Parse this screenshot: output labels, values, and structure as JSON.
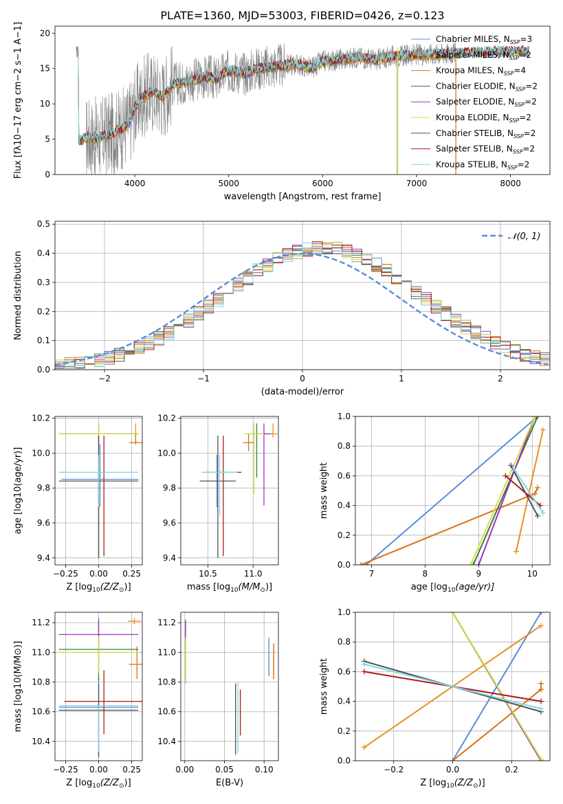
{
  "figure": {
    "title": "PLATE=1360, MJD=53003, FIBERID=0426, z=0.123"
  },
  "legend_series": [
    {
      "name": "Chabrier MILES",
      "nssp": "3",
      "color": "#5a8ad8"
    },
    {
      "name": "Salpeter MILES",
      "nssp": "2",
      "color": "#e89020"
    },
    {
      "name": "Kroupa MILES",
      "nssp": "4",
      "color": "#d87010"
    },
    {
      "name": "Chabrier ELODIE",
      "nssp": "2",
      "color": "#3a7a3a"
    },
    {
      "name": "Salpeter ELODIE",
      "nssp": "2",
      "color": "#a030c0"
    },
    {
      "name": "Kroupa ELODIE",
      "nssp": "2",
      "color": "#d0e040"
    },
    {
      "name": "Chabrier STELIB",
      "nssp": "2",
      "color": "#505050"
    },
    {
      "name": "Salpeter STELIB",
      "nssp": "2",
      "color": "#b01818"
    },
    {
      "name": "Kroupa STELIB",
      "nssp": "2",
      "color": "#80d8e0"
    }
  ],
  "chart_data": [
    {
      "id": "spectrum",
      "type": "line",
      "xlabel": "wavelength [Angstrom, rest frame]",
      "ylabel_parts": [
        "Flux [f",
        "λ",
        "10",
        "−17",
        " erg cm",
        "−2",
        " s",
        "−1",
        " A",
        "−1",
        "]"
      ],
      "xlim": [
        3150,
        8420
      ],
      "ylim": [
        0,
        21
      ],
      "xticks": [
        4000,
        5000,
        6000,
        7000,
        8000
      ],
      "yticks": [
        0,
        5,
        10,
        15,
        20
      ],
      "continuum": [
        [
          3400,
          4.7
        ],
        [
          3500,
          5.3
        ],
        [
          3600,
          5.1
        ],
        [
          3700,
          5.6
        ],
        [
          3800,
          6.0
        ],
        [
          3900,
          6.8
        ],
        [
          3950,
          7.6
        ],
        [
          4000,
          9.5
        ],
        [
          4100,
          11.2
        ],
        [
          4200,
          11.8
        ],
        [
          4300,
          11.0
        ],
        [
          4400,
          12.8
        ],
        [
          4500,
          13.0
        ],
        [
          4600,
          13.3
        ],
        [
          4700,
          13.6
        ],
        [
          4800,
          13.9
        ],
        [
          4861,
          13.4
        ],
        [
          4950,
          14.4
        ],
        [
          5050,
          14.7
        ],
        [
          5175,
          14.3
        ],
        [
          5300,
          15.0
        ],
        [
          5500,
          15.3
        ],
        [
          5700,
          15.6
        ],
        [
          5890,
          15.1
        ],
        [
          6000,
          16.0
        ],
        [
          6200,
          16.3
        ],
        [
          6400,
          16.6
        ],
        [
          6563,
          16.2
        ],
        [
          6700,
          16.6
        ],
        [
          6900,
          16.9
        ],
        [
          7100,
          17.0
        ],
        [
          7300,
          17.1
        ],
        [
          7500,
          17.2
        ],
        [
          7700,
          17.3
        ],
        [
          7900,
          17.4
        ],
        [
          8100,
          17.4
        ],
        [
          8200,
          17.4
        ]
      ],
      "grid": false
    },
    {
      "id": "residual-hist",
      "type": "histogram",
      "xlabel": "(data-model)/error",
      "ylabel": "Normed distribution",
      "xlim": [
        -2.5,
        2.5
      ],
      "ylim": [
        0,
        0.51
      ],
      "xticks": [
        -2,
        -1,
        0,
        1,
        2
      ],
      "yticks": [
        0.0,
        0.1,
        0.2,
        0.3,
        0.4,
        0.5
      ],
      "bin_width": 0.1,
      "reference_curve": {
        "label": "𝒩(0, 1)",
        "mean": 0,
        "sigma": 1,
        "color": "#5a8ad8"
      },
      "legend_position": "upper right",
      "grid": true
    },
    {
      "id": "age-vs-Z",
      "type": "errorbar",
      "xlabel_parts": [
        "Z [log",
        "10",
        "(Z/Z",
        "⊙",
        ")]"
      ],
      "ylabel_parts": [
        "age  [log",
        "10",
        "(age/yr)]"
      ],
      "xlim": [
        -0.33,
        0.33
      ],
      "ylim": [
        9.36,
        10.21
      ],
      "xticks": [
        -0.25,
        0.0,
        0.25
      ],
      "yticks": [
        9.4,
        9.6,
        9.8,
        10.0,
        10.2
      ],
      "points": [
        {
          "series": 0,
          "x": 0.01,
          "y": 9.85,
          "xerr": 0.29,
          "yerr": [
            0.16,
            0.2
          ]
        },
        {
          "series": 1,
          "x": 0.28,
          "y": 10.11,
          "xerr": 0.02,
          "yerr": [
            0.05,
            0.06
          ]
        },
        {
          "series": 2,
          "x": 0.28,
          "y": 10.06,
          "xerr": 0.05,
          "yerr": [
            0.01,
            0.05
          ]
        },
        {
          "series": 3,
          "x": 0.0,
          "y": 10.11,
          "xerr": 0.3,
          "yerr": [
            0.71,
            0.0
          ]
        },
        {
          "series": 4,
          "x": 0.0,
          "y": 10.11,
          "xerr": 0.27,
          "yerr": [
            0.06,
            0.06
          ]
        },
        {
          "series": 5,
          "x": 0.0,
          "y": 10.11,
          "xerr": 0.3,
          "yerr": [
            0.06,
            0.06
          ]
        },
        {
          "series": 6,
          "x": 0.0,
          "y": 9.84,
          "xerr": 0.3,
          "yerr": [
            0.44,
            0.26
          ]
        },
        {
          "series": 7,
          "x": 0.04,
          "y": 9.84,
          "xerr": 0.0,
          "yerr": [
            0.43,
            0.26
          ]
        },
        {
          "series": 8,
          "x": 0.0,
          "y": 9.89,
          "xerr": 0.3,
          "yerr": [
            0.2,
            0.1
          ]
        }
      ],
      "grid": true
    },
    {
      "id": "age-vs-mass",
      "type": "errorbar",
      "xlabel_parts": [
        "mass [log",
        "10",
        "(M/M",
        "⊙",
        ")]"
      ],
      "ylabel": "",
      "xlim": [
        10.2,
        11.28
      ],
      "ylim": [
        9.36,
        10.21
      ],
      "xticks": [
        10.5,
        11.0
      ],
      "yticks": [
        9.4,
        9.6,
        9.8,
        10.0,
        10.2
      ],
      "points": [
        {
          "series": 0,
          "x": 10.6,
          "y": 9.89,
          "xerr": 0.11,
          "yerr": [
            0.2,
            0.1
          ]
        },
        {
          "series": 1,
          "x": 11.22,
          "y": 10.11,
          "xerr": 0.05,
          "yerr": [
            0.02,
            0.06
          ]
        },
        {
          "series": 2,
          "x": 10.95,
          "y": 10.06,
          "xerr": 0.06,
          "yerr": [
            0.05,
            0.05
          ]
        },
        {
          "series": 3,
          "x": 11.04,
          "y": 10.11,
          "xerr": 0.13,
          "yerr": [
            0.25,
            0.06
          ]
        },
        {
          "series": 4,
          "x": 11.12,
          "y": 10.11,
          "xerr": 0.08,
          "yerr": [
            0.41,
            0.06
          ]
        },
        {
          "series": 5,
          "x": 11.01,
          "y": 10.11,
          "xerr": 0.11,
          "yerr": [
            0.34,
            0.06
          ]
        },
        {
          "series": 6,
          "x": 10.61,
          "y": 9.84,
          "xerr": 0.2,
          "yerr": [
            0.44,
            0.26
          ]
        },
        {
          "series": 7,
          "x": 10.67,
          "y": 9.89,
          "xerr": 0.2,
          "yerr": [
            0.48,
            0.21
          ]
        },
        {
          "series": 8,
          "x": 10.63,
          "y": 9.89,
          "xerr": 0.2,
          "yerr": [
            0.25,
            0.1
          ]
        }
      ],
      "grid": true
    },
    {
      "id": "mass-weight-vs-age",
      "type": "line",
      "xlabel_parts": [
        "age  [log",
        "10",
        "(age/yr)]"
      ],
      "ylabel": "mass weight",
      "xlim": [
        6.7,
        10.33
      ],
      "ylim": [
        0,
        1.0
      ],
      "xticks": [
        7,
        8,
        9,
        10
      ],
      "yticks": [
        0.0,
        0.2,
        0.4,
        0.6,
        0.8,
        1.0
      ],
      "series": [
        {
          "series": 0,
          "points": [
            [
              6.9,
              0.0
            ],
            [
              10.1,
              1.0
            ]
          ]
        },
        {
          "series": 1,
          "points": [
            [
              9.7,
              0.09
            ],
            [
              10.2,
              0.91
            ]
          ]
        },
        {
          "series": 2,
          "points": [
            [
              6.8,
              0.0
            ],
            [
              10.05,
              0.48
            ],
            [
              10.1,
              0.52
            ]
          ]
        },
        {
          "series": 3,
          "points": [
            [
              8.9,
              0.0
            ],
            [
              10.1,
              1.0
            ]
          ]
        },
        {
          "series": 4,
          "points": [
            [
              9.0,
              0.0
            ],
            [
              10.05,
              1.0
            ]
          ]
        },
        {
          "series": 5,
          "points": [
            [
              8.85,
              0.0
            ],
            [
              10.05,
              1.0
            ]
          ]
        },
        {
          "series": 6,
          "points": [
            [
              9.6,
              0.67
            ],
            [
              10.1,
              0.33
            ]
          ]
        },
        {
          "series": 7,
          "points": [
            [
              9.5,
              0.6
            ],
            [
              10.15,
              0.4
            ]
          ]
        },
        {
          "series": 8,
          "points": [
            [
              9.65,
              0.65
            ],
            [
              10.2,
              0.35
            ]
          ]
        }
      ],
      "grid": true
    },
    {
      "id": "mass-vs-Z",
      "type": "errorbar",
      "xlabel_parts": [
        "Z [log",
        "10",
        "(Z/Z",
        "⊙",
        ")]"
      ],
      "ylabel_parts": [
        "mass [log",
        "10",
        "(M/M",
        "⊙",
        ")]"
      ],
      "xlim": [
        -0.33,
        0.33
      ],
      "ylim": [
        10.27,
        11.27
      ],
      "xticks": [
        -0.25,
        0.0,
        0.25
      ],
      "yticks": [
        10.4,
        10.6,
        10.8,
        11.0,
        11.2
      ],
      "points": [
        {
          "series": 0,
          "x": 0.0,
          "y": 10.63,
          "xerr": 0.3,
          "yerr": [
            0.32,
            0.2
          ]
        },
        {
          "series": 1,
          "x": 0.27,
          "y": 11.21,
          "xerr": 0.05,
          "yerr": [
            0.02,
            0.02
          ]
        },
        {
          "series": 2,
          "x": 0.29,
          "y": 10.92,
          "xerr": 0.06,
          "yerr": [
            0.1,
            0.12
          ]
        },
        {
          "series": 3,
          "x": 0.0,
          "y": 11.02,
          "xerr": 0.3,
          "yerr": [
            0.21,
            0.18
          ]
        },
        {
          "series": 4,
          "x": 0.0,
          "y": 11.12,
          "xerr": 0.3,
          "yerr": [
            0.07,
            0.11
          ]
        },
        {
          "series": 5,
          "x": 0.0,
          "y": 11.0,
          "xerr": 0.3,
          "yerr": [
            0.14,
            0.11
          ]
        },
        {
          "series": 6,
          "x": 0.0,
          "y": 10.61,
          "xerr": 0.3,
          "yerr": [
            0.32,
            0.18
          ]
        },
        {
          "series": 7,
          "x": 0.04,
          "y": 10.67,
          "xerr": 0.3,
          "yerr": [
            0.22,
            0.21
          ]
        },
        {
          "series": 8,
          "x": 0.0,
          "y": 10.64,
          "xerr": 0.3,
          "yerr": [
            0.31,
            0.0
          ]
        }
      ],
      "grid": true
    },
    {
      "id": "mass-vs-EBV",
      "type": "errorbar",
      "xlabel": "E(B-V)",
      "ylabel": "",
      "xlim": [
        -0.005,
        0.118
      ],
      "ylim": [
        10.27,
        11.27
      ],
      "xticks": [
        0.0,
        0.05,
        0.1
      ],
      "yticks": [
        10.4,
        10.6,
        10.8,
        11.0,
        11.2
      ],
      "points": [
        {
          "series": 0,
          "x": 0.106,
          "y": 10.97,
          "xerr": 0.0,
          "yerr": [
            0.13,
            0.13
          ]
        },
        {
          "series": 1,
          "x": 0.112,
          "y": 10.92,
          "xerr": 0.0,
          "yerr": [
            0.1,
            0.14
          ]
        },
        {
          "series": 2,
          "x": 0.112,
          "y": 10.92,
          "xerr": 0.0,
          "yerr": [
            0.1,
            0.14
          ]
        },
        {
          "series": 3,
          "x": 0.001,
          "y": 11.0,
          "xerr": 0.0,
          "yerr": [
            0.21,
            0.21
          ]
        },
        {
          "series": 4,
          "x": 0.001,
          "y": 11.12,
          "xerr": 0.0,
          "yerr": [
            0.1,
            0.1
          ]
        },
        {
          "series": 5,
          "x": 0.001,
          "y": 11.0,
          "xerr": 0.0,
          "yerr": [
            0.21,
            0.1
          ]
        },
        {
          "series": 6,
          "x": 0.064,
          "y": 10.61,
          "xerr": 0.0,
          "yerr": [
            0.3,
            0.18
          ]
        },
        {
          "series": 7,
          "x": 0.07,
          "y": 10.64,
          "xerr": 0.0,
          "yerr": [
            0.2,
            0.11
          ]
        },
        {
          "series": 8,
          "x": 0.067,
          "y": 10.62,
          "xerr": 0.0,
          "yerr": [
            0.3,
            0.18
          ]
        }
      ],
      "grid": true
    },
    {
      "id": "mass-weight-vs-Z",
      "type": "line",
      "xlabel_parts": [
        "Z [log",
        "10",
        "(Z/Z",
        "⊙",
        ")]"
      ],
      "ylabel": "mass weight",
      "xlim": [
        -0.33,
        0.33
      ],
      "ylim": [
        0,
        1.0
      ],
      "xticks": [
        -0.2,
        0.0,
        0.2
      ],
      "yticks": [
        0.0,
        0.2,
        0.4,
        0.6,
        0.8,
        1.0
      ],
      "series": [
        {
          "series": 0,
          "points": [
            [
              0.0,
              0.0
            ],
            [
              0.3,
              1.0
            ]
          ]
        },
        {
          "series": 1,
          "points": [
            [
              -0.3,
              0.09
            ],
            [
              0.3,
              0.91
            ]
          ]
        },
        {
          "series": 2,
          "points": [
            [
              0.0,
              0.0
            ],
            [
              0.3,
              0.48
            ],
            [
              0.3,
              0.52
            ]
          ]
        },
        {
          "series": 3,
          "points": [
            [
              0.0,
              1.0
            ],
            [
              0.3,
              0.0
            ]
          ]
        },
        {
          "series": 4,
          "points": [
            [
              0.0,
              1.0
            ],
            [
              0.3,
              0.0
            ]
          ]
        },
        {
          "series": 5,
          "points": [
            [
              0.0,
              1.0
            ],
            [
              0.3,
              0.01
            ]
          ]
        },
        {
          "series": 6,
          "points": [
            [
              -0.3,
              0.67
            ],
            [
              0.3,
              0.33
            ]
          ]
        },
        {
          "series": 7,
          "points": [
            [
              -0.3,
              0.6
            ],
            [
              0.3,
              0.4
            ]
          ]
        },
        {
          "series": 8,
          "points": [
            [
              -0.3,
              0.65
            ],
            [
              0.3,
              0.35
            ]
          ]
        }
      ],
      "grid": true
    }
  ]
}
